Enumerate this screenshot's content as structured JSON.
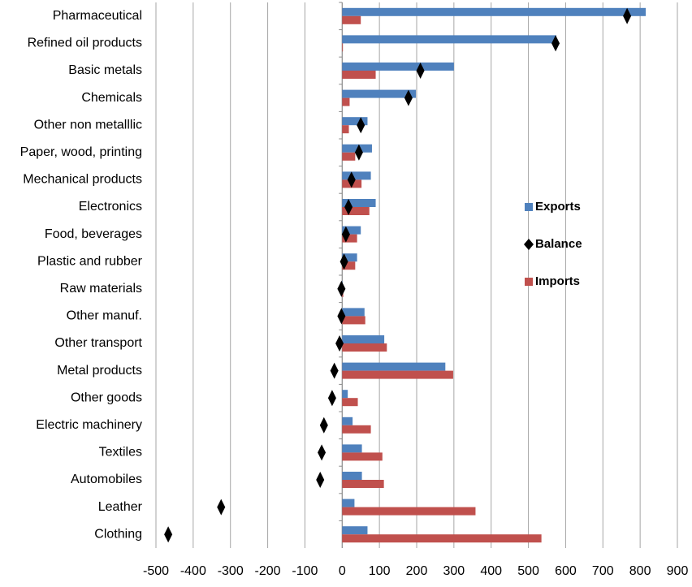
{
  "chart_data": {
    "type": "bar",
    "orientation": "horizontal",
    "categories": [
      "Pharmaceutical",
      "Refined oil products",
      "Basic metals",
      "Chemicals",
      "Other non metalllic",
      "Paper, wood, printing",
      "Mechanical products",
      "Electronics",
      "Food, beverages",
      "Plastic and rubber",
      "Raw materials",
      "Other manuf.",
      "Other transport",
      "Metal products",
      "Other goods",
      "Electric machinery",
      "Textiles",
      "Automobiles",
      "Leather",
      "Clothing"
    ],
    "series": [
      {
        "name": "Exports",
        "color": "#4f81bd",
        "mark": "bar",
        "values": [
          815,
          575,
          300,
          198,
          68,
          80,
          77,
          90,
          50,
          40,
          1,
          60,
          113,
          277,
          15,
          28,
          53,
          53,
          33,
          68
        ]
      },
      {
        "name": "Balance",
        "color": "#000000",
        "mark": "diamond",
        "values": [
          765,
          573,
          210,
          178,
          50,
          45,
          25,
          17,
          10,
          5,
          -2,
          -2,
          -7,
          -21,
          -27,
          -49,
          -55,
          -59,
          -325,
          -467
        ]
      },
      {
        "name": "Imports",
        "color": "#c0504d",
        "mark": "bar",
        "values": [
          50,
          2,
          90,
          20,
          18,
          35,
          52,
          73,
          40,
          35,
          3,
          62,
          120,
          298,
          42,
          77,
          108,
          112,
          358,
          535
        ]
      }
    ],
    "xlim": [
      -500,
      900
    ],
    "xticks": [
      -500,
      -400,
      -300,
      -200,
      -100,
      0,
      100,
      200,
      300,
      400,
      500,
      600,
      700,
      800,
      900
    ],
    "grid": true,
    "legend": "right"
  }
}
